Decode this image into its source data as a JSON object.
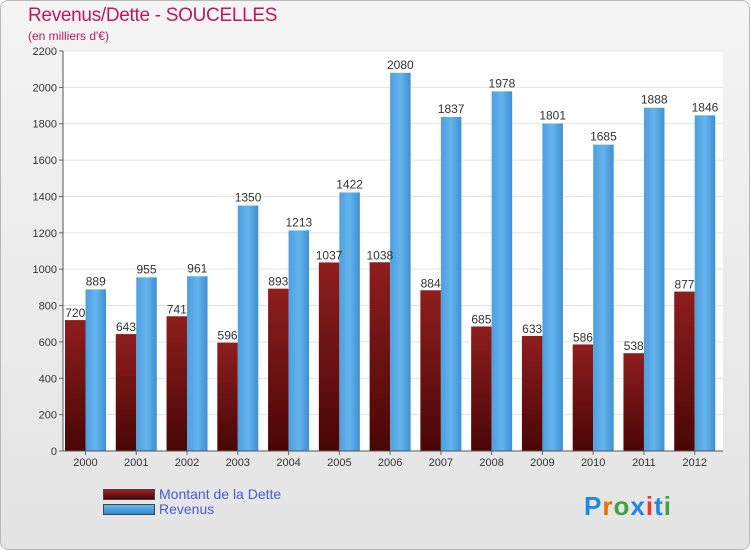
{
  "header": {
    "title": "Revenus/Dette - SOUCELLES",
    "subtitle": "(en milliers d'€)"
  },
  "legend": {
    "items": [
      {
        "label": "Montant de la Dette",
        "color": "#6b0a0a"
      },
      {
        "label": "Revenus",
        "color": "#4aa0e0"
      }
    ]
  },
  "logo": {
    "text": "Proxiti",
    "colors": [
      "#1e88e5",
      "#ef6c00",
      "#43a047",
      "#1e88e5",
      "#e53935",
      "#1e88e5",
      "#43a047"
    ]
  },
  "chart_data": {
    "type": "bar",
    "title": "Revenus/Dette - SOUCELLES",
    "subtitle": "(en milliers d'€)",
    "categories": [
      "2000",
      "2001",
      "2002",
      "2003",
      "2004",
      "2005",
      "2006",
      "2007",
      "2008",
      "2009",
      "2010",
      "2011",
      "2012"
    ],
    "series": [
      {
        "name": "Montant de la Dette",
        "color": "#7a1515",
        "values": [
          720,
          643,
          741,
          596,
          893,
          1037,
          1038,
          884,
          685,
          633,
          586,
          538,
          877
        ]
      },
      {
        "name": "Revenus",
        "color": "#56a9e6",
        "values": [
          889,
          955,
          961,
          1350,
          1213,
          1422,
          2080,
          1837,
          1978,
          1801,
          1685,
          1888,
          1846
        ]
      }
    ],
    "ylim": [
      0,
      2200
    ],
    "yticks": [
      0,
      200,
      400,
      600,
      800,
      1000,
      1200,
      1400,
      1600,
      1800,
      2000,
      2200
    ],
    "grid": true,
    "legend_position": "bottom-left"
  }
}
